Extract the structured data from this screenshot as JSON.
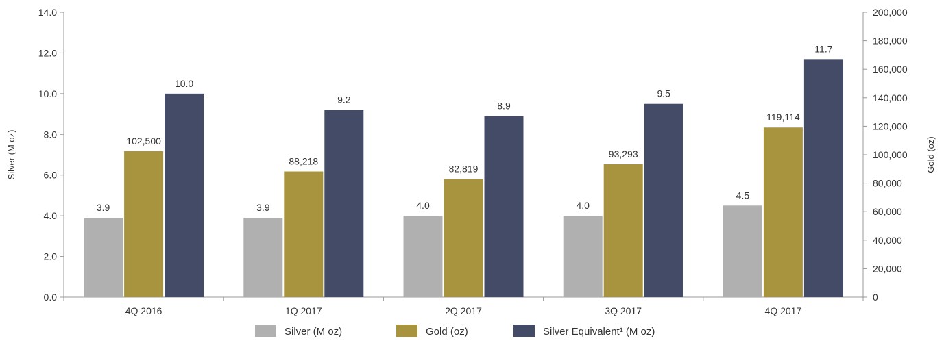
{
  "chart_data": {
    "type": "bar",
    "categories": [
      "4Q 2016",
      "1Q 2017",
      "2Q 2017",
      "3Q 2017",
      "4Q 2017"
    ],
    "series": [
      {
        "name": "Silver (M oz)",
        "axis": "left",
        "color": "#b0b0b0",
        "values": [
          3.9,
          3.9,
          4.0,
          4.0,
          4.5
        ],
        "labels": [
          "3.9",
          "3.9",
          "4.0",
          "4.0",
          "4.5"
        ]
      },
      {
        "name": "Gold (oz)",
        "axis": "right",
        "color": "#a8943f",
        "values": [
          102500,
          88218,
          82819,
          93293,
          119114
        ],
        "labels": [
          "102,500",
          "88,218",
          "82,819",
          "93,293",
          "119,114"
        ]
      },
      {
        "name": "Silver Equivalent¹ (M oz)",
        "axis": "left",
        "color": "#434b66",
        "values": [
          10.0,
          9.2,
          8.9,
          9.5,
          11.7
        ],
        "labels": [
          "10.0",
          "9.2",
          "8.9",
          "9.5",
          "11.7"
        ]
      }
    ],
    "ylabel": "Silver (M oz)",
    "y2label": "Gold (oz)",
    "ylim": [
      0,
      14
    ],
    "y2lim": [
      0,
      200000
    ],
    "yticks": [
      "0.0",
      "2.0",
      "4.0",
      "6.0",
      "8.0",
      "10.0",
      "12.0",
      "14.0"
    ],
    "y2ticks": [
      "0",
      "20,000",
      "40,000",
      "60,000",
      "80,000",
      "100,000",
      "120,000",
      "140,000",
      "160,000",
      "180,000",
      "200,000"
    ],
    "legend_position": "bottom",
    "grid": false
  }
}
